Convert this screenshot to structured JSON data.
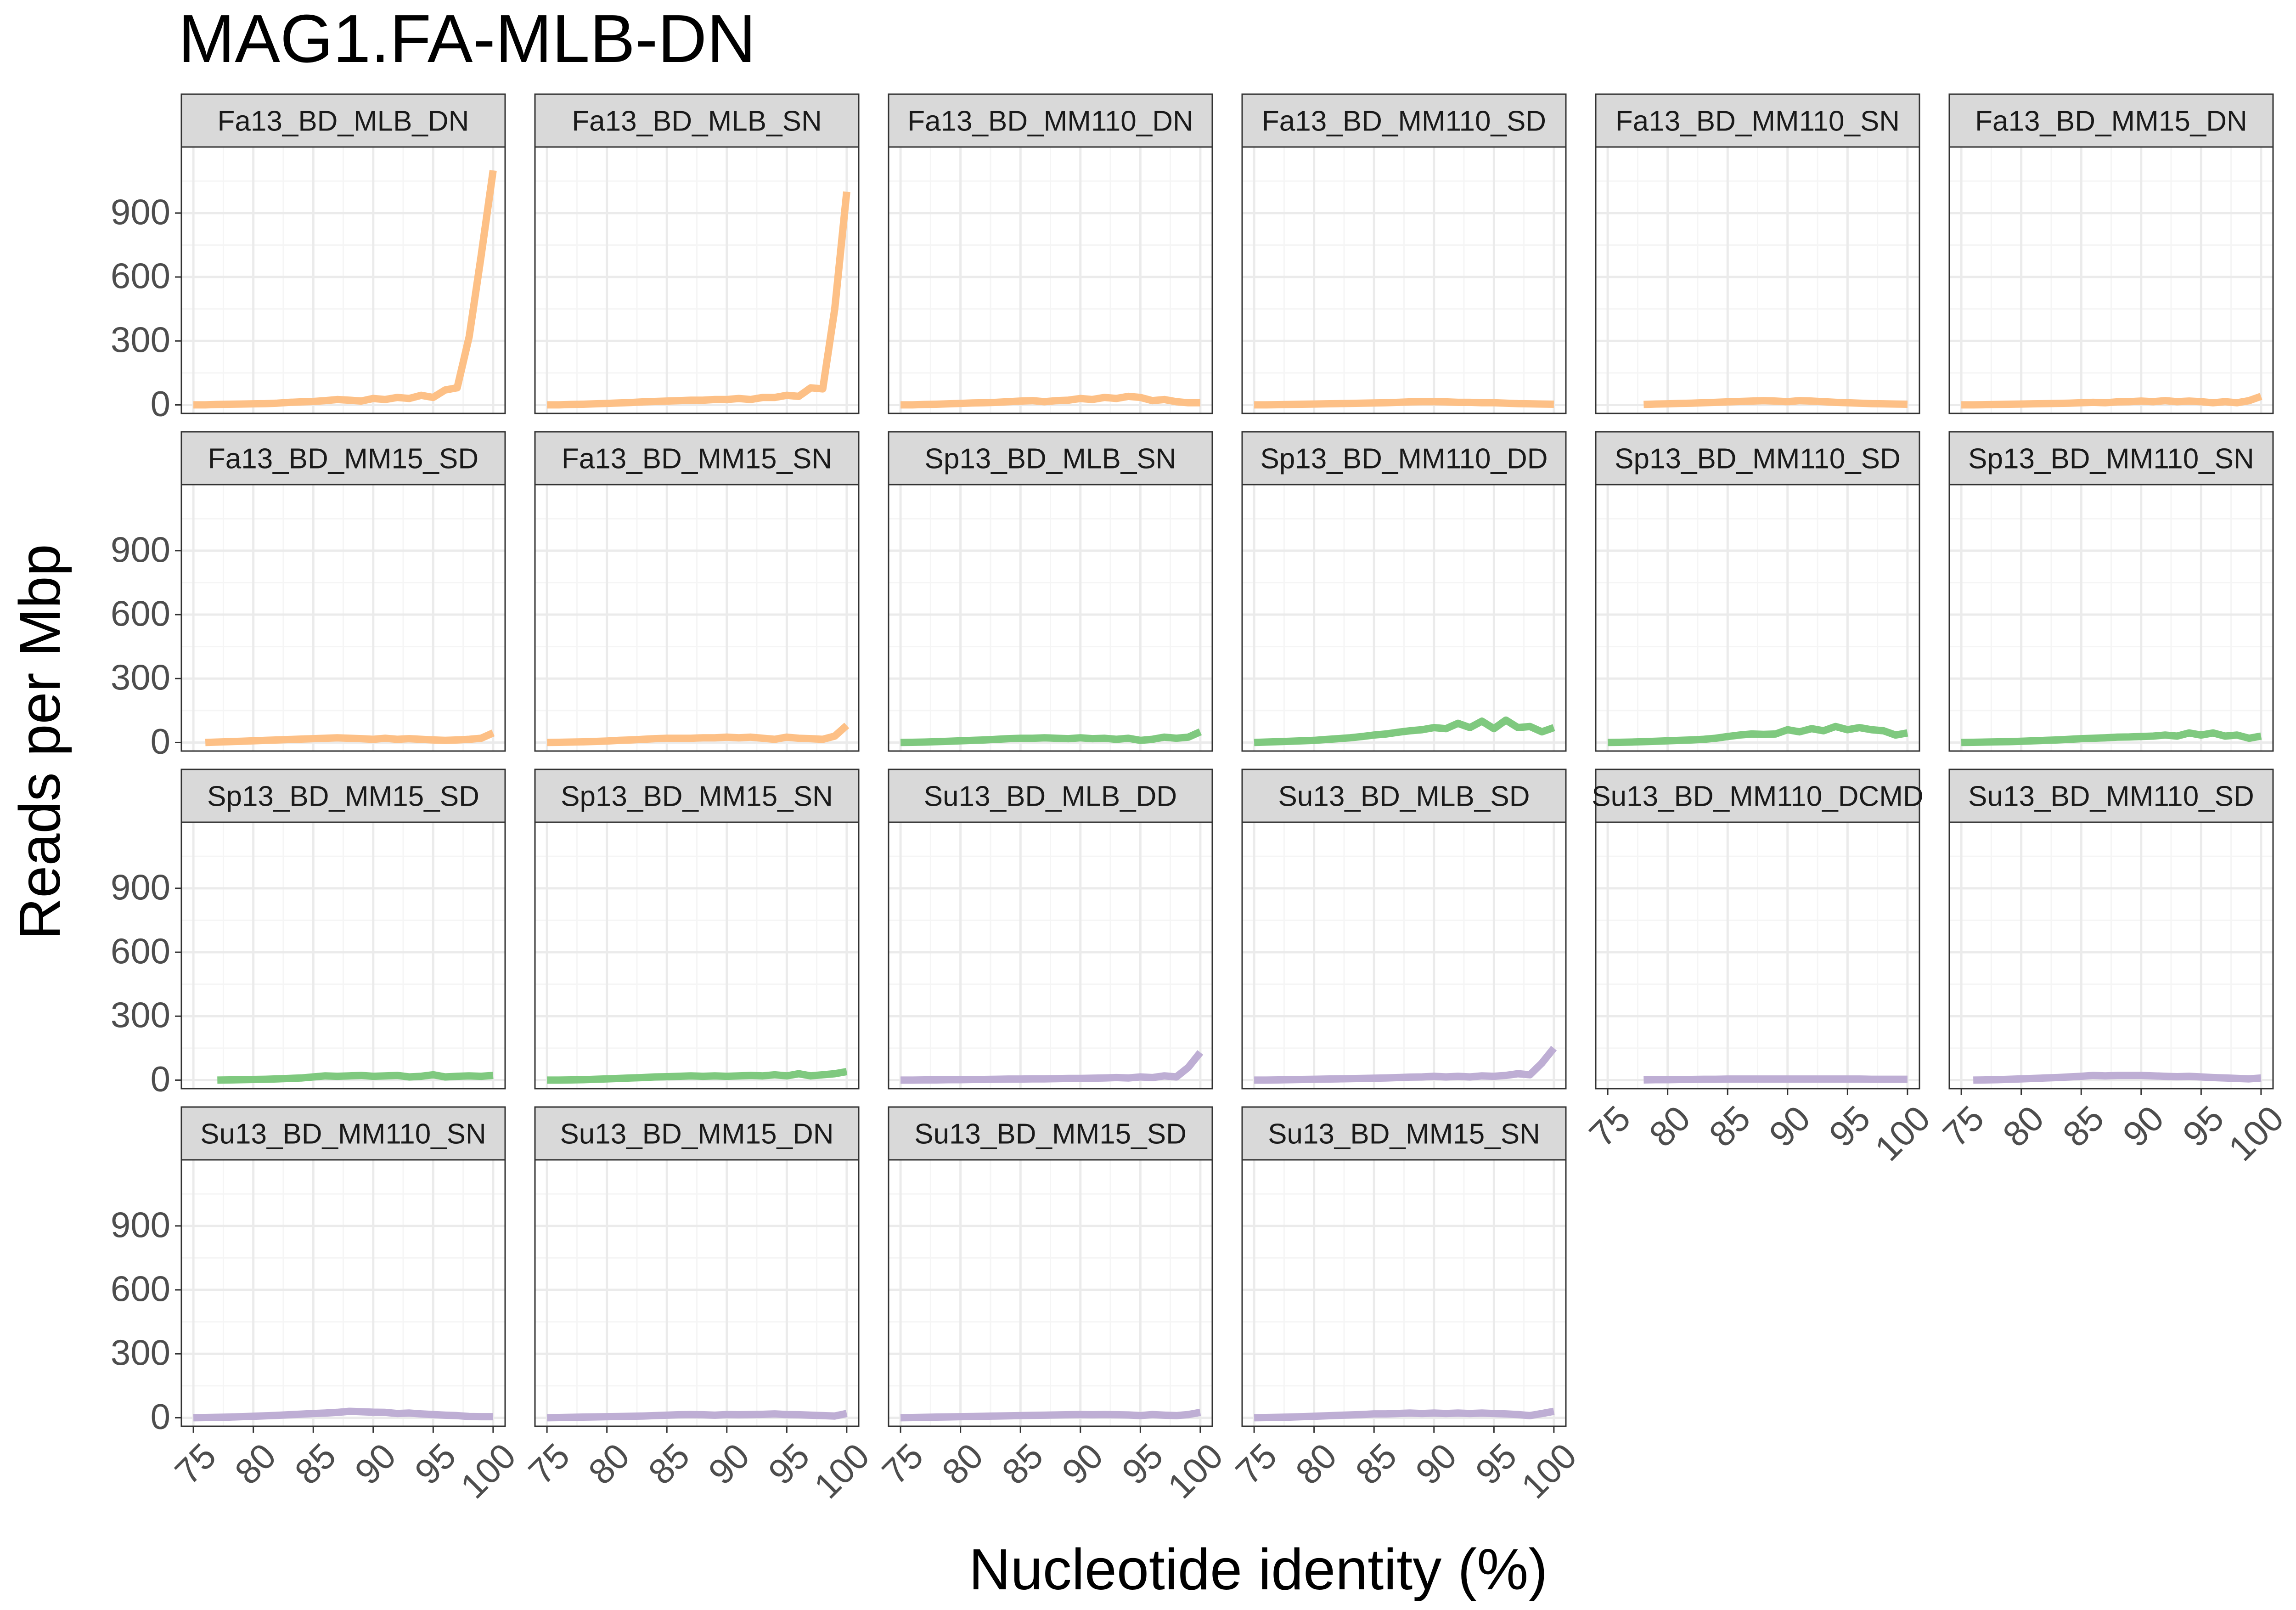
{
  "chart_data": {
    "type": "line",
    "title": "MAG1.FA-MLB-DN",
    "xlabel": "Nucleotide identity (%)",
    "ylabel": "Reads per Mbp",
    "xlim": [
      74,
      101
    ],
    "ylim": [
      -40,
      1210
    ],
    "x_ticks": [
      75,
      80,
      85,
      90,
      95,
      100
    ],
    "x_tick_labels": [
      "75",
      "80",
      "85",
      "90",
      "95",
      "100"
    ],
    "y_ticks": [
      0,
      300,
      600,
      900
    ],
    "y_tick_labels": [
      "0",
      "300",
      "600",
      "900"
    ],
    "grid": true,
    "legend": "none",
    "colors": {
      "Fa": "#FDC086",
      "Sp": "#7FC97F",
      "Su": "#BEAED4",
      "strip_fill": "#D9D9D9",
      "panel_border": "#333333",
      "grid_major": "#EBEBEB",
      "grid_minor": "#F5F5F5",
      "axis_text": "#4D4D4D"
    },
    "panels": [
      {
        "label": "Fa13_BD_MLB_DN",
        "color_key": "Fa",
        "x": [
          75,
          76,
          77,
          78,
          79,
          80,
          81,
          82,
          83,
          84,
          85,
          86,
          87,
          88,
          89,
          90,
          91,
          92,
          93,
          94,
          95,
          96,
          97,
          98,
          99,
          100
        ],
        "y": [
          0,
          0,
          2,
          3,
          4,
          5,
          6,
          8,
          12,
          14,
          16,
          20,
          25,
          22,
          18,
          30,
          25,
          35,
          30,
          45,
          35,
          70,
          80,
          320,
          700,
          1100
        ]
      },
      {
        "label": "Fa13_BD_MLB_SN",
        "color_key": "Fa",
        "x": [
          75,
          76,
          77,
          78,
          79,
          80,
          81,
          82,
          83,
          84,
          85,
          86,
          87,
          88,
          89,
          90,
          91,
          92,
          93,
          94,
          95,
          96,
          97,
          98,
          99,
          100
        ],
        "y": [
          0,
          0,
          2,
          3,
          5,
          7,
          9,
          11,
          14,
          16,
          18,
          20,
          22,
          22,
          25,
          25,
          30,
          25,
          35,
          35,
          45,
          40,
          80,
          75,
          450,
          1000
        ]
      },
      {
        "label": "Fa13_BD_MM110_DN",
        "color_key": "Fa",
        "x": [
          75,
          76,
          77,
          78,
          79,
          80,
          81,
          82,
          83,
          84,
          85,
          86,
          87,
          88,
          89,
          90,
          91,
          92,
          93,
          94,
          95,
          96,
          97,
          98,
          99,
          100
        ],
        "y": [
          0,
          0,
          2,
          3,
          5,
          7,
          9,
          10,
          12,
          15,
          18,
          20,
          15,
          20,
          22,
          30,
          25,
          35,
          30,
          40,
          35,
          20,
          25,
          15,
          10,
          10
        ]
      },
      {
        "label": "Fa13_BD_MM110_SD",
        "color_key": "Fa",
        "x": [
          75,
          76,
          77,
          78,
          79,
          80,
          81,
          82,
          83,
          84,
          85,
          86,
          87,
          88,
          89,
          90,
          91,
          92,
          93,
          94,
          95,
          96,
          97,
          98,
          99,
          100
        ],
        "y": [
          0,
          0,
          1,
          2,
          3,
          4,
          5,
          6,
          7,
          8,
          9,
          10,
          12,
          14,
          15,
          15,
          14,
          12,
          12,
          10,
          10,
          8,
          6,
          5,
          4,
          3
        ]
      },
      {
        "label": "Fa13_BD_MM110_SN",
        "color_key": "Fa",
        "x": [
          78,
          79,
          80,
          81,
          82,
          83,
          84,
          85,
          86,
          87,
          88,
          89,
          90,
          91,
          92,
          93,
          94,
          95,
          96,
          97,
          98,
          99,
          100
        ],
        "y": [
          2,
          4,
          5,
          7,
          8,
          10,
          12,
          14,
          16,
          18,
          20,
          18,
          15,
          20,
          18,
          15,
          12,
          10,
          8,
          6,
          5,
          4,
          3
        ]
      },
      {
        "label": "Fa13_BD_MM15_DN",
        "color_key": "Fa",
        "x": [
          75,
          76,
          77,
          78,
          79,
          80,
          81,
          82,
          83,
          84,
          85,
          86,
          87,
          88,
          89,
          90,
          91,
          92,
          93,
          94,
          95,
          96,
          97,
          98,
          99,
          100
        ],
        "y": [
          0,
          0,
          1,
          2,
          3,
          4,
          5,
          6,
          7,
          8,
          10,
          12,
          10,
          14,
          15,
          18,
          15,
          20,
          15,
          18,
          15,
          10,
          15,
          10,
          20,
          40
        ]
      },
      {
        "label": "Fa13_BD_MM15_SD",
        "color_key": "Fa",
        "x": [
          76,
          77,
          78,
          79,
          80,
          81,
          82,
          83,
          84,
          85,
          86,
          87,
          88,
          89,
          90,
          91,
          92,
          93,
          94,
          95,
          96,
          97,
          98,
          99,
          100
        ],
        "y": [
          0,
          2,
          4,
          6,
          8,
          10,
          12,
          14,
          16,
          18,
          20,
          22,
          20,
          18,
          15,
          20,
          15,
          18,
          15,
          12,
          10,
          12,
          15,
          20,
          45
        ]
      },
      {
        "label": "Fa13_BD_MM15_SN",
        "color_key": "Fa",
        "x": [
          75,
          76,
          77,
          78,
          79,
          80,
          81,
          82,
          83,
          84,
          85,
          86,
          87,
          88,
          89,
          90,
          91,
          92,
          93,
          94,
          95,
          96,
          97,
          98,
          99,
          100
        ],
        "y": [
          0,
          1,
          2,
          3,
          5,
          7,
          10,
          12,
          15,
          18,
          20,
          20,
          20,
          22,
          22,
          25,
          22,
          25,
          20,
          15,
          25,
          20,
          18,
          15,
          30,
          80
        ]
      },
      {
        "label": "Sp13_BD_MLB_SN",
        "color_key": "Sp",
        "x": [
          75,
          76,
          77,
          78,
          79,
          80,
          81,
          82,
          83,
          84,
          85,
          86,
          87,
          88,
          89,
          90,
          91,
          92,
          93,
          94,
          95,
          96,
          97,
          98,
          99,
          100
        ],
        "y": [
          0,
          1,
          2,
          4,
          6,
          8,
          10,
          12,
          15,
          18,
          20,
          20,
          22,
          20,
          18,
          22,
          18,
          20,
          15,
          20,
          10,
          15,
          25,
          20,
          25,
          50
        ]
      },
      {
        "label": "Sp13_BD_MM110_DD",
        "color_key": "Sp",
        "x": [
          75,
          76,
          77,
          78,
          79,
          80,
          81,
          82,
          83,
          84,
          85,
          86,
          87,
          88,
          89,
          90,
          91,
          92,
          93,
          94,
          95,
          96,
          97,
          98,
          99,
          100
        ],
        "y": [
          0,
          2,
          4,
          6,
          8,
          10,
          14,
          18,
          22,
          28,
          35,
          40,
          48,
          55,
          60,
          70,
          65,
          90,
          70,
          100,
          65,
          105,
          70,
          75,
          50,
          70
        ]
      },
      {
        "label": "Sp13_BD_MM110_SD",
        "color_key": "Sp",
        "x": [
          75,
          76,
          77,
          78,
          79,
          80,
          81,
          82,
          83,
          84,
          85,
          86,
          87,
          88,
          89,
          90,
          91,
          92,
          93,
          94,
          95,
          96,
          97,
          98,
          99,
          100
        ],
        "y": [
          0,
          1,
          2,
          4,
          6,
          8,
          10,
          12,
          15,
          20,
          28,
          35,
          40,
          38,
          40,
          60,
          50,
          65,
          55,
          75,
          60,
          70,
          60,
          55,
          35,
          45
        ]
      },
      {
        "label": "Sp13_BD_MM110_SN",
        "color_key": "Sp",
        "x": [
          75,
          76,
          77,
          78,
          79,
          80,
          81,
          82,
          83,
          84,
          85,
          86,
          87,
          88,
          89,
          90,
          91,
          92,
          93,
          94,
          95,
          96,
          97,
          98,
          99,
          100
        ],
        "y": [
          0,
          1,
          2,
          3,
          4,
          6,
          8,
          10,
          12,
          15,
          18,
          20,
          22,
          25,
          26,
          28,
          30,
          35,
          30,
          45,
          35,
          45,
          30,
          35,
          20,
          30
        ]
      },
      {
        "label": "Sp13_BD_MM15_SD",
        "color_key": "Sp",
        "x": [
          77,
          78,
          79,
          80,
          81,
          82,
          83,
          84,
          85,
          86,
          87,
          88,
          89,
          90,
          91,
          92,
          93,
          94,
          95,
          96,
          97,
          98,
          99,
          100
        ],
        "y": [
          0,
          1,
          2,
          3,
          4,
          6,
          8,
          10,
          15,
          20,
          18,
          20,
          22,
          18,
          20,
          22,
          15,
          18,
          25,
          15,
          18,
          20,
          18,
          22
        ]
      },
      {
        "label": "Sp13_BD_MM15_SN",
        "color_key": "Sp",
        "x": [
          75,
          76,
          77,
          78,
          79,
          80,
          81,
          82,
          83,
          84,
          85,
          86,
          87,
          88,
          89,
          90,
          91,
          92,
          93,
          94,
          95,
          96,
          97,
          98,
          99,
          100
        ],
        "y": [
          0,
          0,
          1,
          2,
          4,
          6,
          8,
          10,
          12,
          15,
          16,
          18,
          20,
          18,
          20,
          18,
          20,
          22,
          20,
          25,
          20,
          30,
          20,
          25,
          30,
          40
        ]
      },
      {
        "label": "Su13_BD_MLB_DD",
        "color_key": "Su",
        "x": [
          75,
          76,
          77,
          78,
          79,
          80,
          81,
          82,
          83,
          84,
          85,
          86,
          87,
          88,
          89,
          90,
          91,
          92,
          93,
          94,
          95,
          96,
          97,
          98,
          99,
          100
        ],
        "y": [
          0,
          0,
          1,
          1,
          2,
          2,
          3,
          3,
          4,
          5,
          5,
          6,
          6,
          7,
          8,
          8,
          9,
          10,
          12,
          10,
          15,
          12,
          20,
          15,
          60,
          130
        ]
      },
      {
        "label": "Su13_BD_MLB_SD",
        "color_key": "Su",
        "x": [
          75,
          76,
          77,
          78,
          79,
          80,
          81,
          82,
          83,
          84,
          85,
          86,
          87,
          88,
          89,
          90,
          91,
          92,
          93,
          94,
          95,
          96,
          97,
          98,
          99,
          100
        ],
        "y": [
          0,
          0,
          1,
          2,
          3,
          4,
          5,
          6,
          7,
          8,
          9,
          10,
          12,
          14,
          15,
          18,
          15,
          18,
          15,
          20,
          18,
          22,
          30,
          25,
          80,
          150
        ]
      },
      {
        "label": "Su13_BD_MM110_DCMD",
        "color_key": "Su",
        "x": [
          78,
          79,
          80,
          81,
          82,
          83,
          84,
          85,
          86,
          87,
          88,
          89,
          90,
          91,
          92,
          93,
          94,
          95,
          96,
          97,
          98,
          99,
          100
        ],
        "y": [
          1,
          2,
          2,
          3,
          3,
          4,
          4,
          5,
          5,
          5,
          5,
          5,
          5,
          5,
          5,
          5,
          5,
          5,
          5,
          4,
          4,
          4,
          4
        ]
      },
      {
        "label": "Su13_BD_MM110_SD",
        "color_key": "Su",
        "x": [
          76,
          77,
          78,
          79,
          80,
          81,
          82,
          83,
          84,
          85,
          86,
          87,
          88,
          89,
          90,
          91,
          92,
          93,
          94,
          95,
          96,
          97,
          98,
          99,
          100
        ],
        "y": [
          0,
          1,
          2,
          4,
          6,
          8,
          10,
          12,
          15,
          18,
          22,
          20,
          22,
          22,
          22,
          20,
          18,
          16,
          18,
          15,
          12,
          10,
          8,
          6,
          10
        ]
      },
      {
        "label": "Su13_BD_MM110_SN",
        "color_key": "Su",
        "x": [
          75,
          76,
          77,
          78,
          79,
          80,
          81,
          82,
          83,
          84,
          85,
          86,
          87,
          88,
          89,
          90,
          91,
          92,
          93,
          94,
          95,
          96,
          97,
          98,
          99,
          100
        ],
        "y": [
          0,
          1,
          2,
          3,
          5,
          7,
          9,
          11,
          14,
          17,
          20,
          22,
          25,
          30,
          28,
          26,
          25,
          20,
          22,
          18,
          15,
          12,
          10,
          6,
          5,
          5
        ]
      },
      {
        "label": "Su13_BD_MM15_DN",
        "color_key": "Su",
        "x": [
          75,
          76,
          77,
          78,
          79,
          80,
          81,
          82,
          83,
          84,
          85,
          86,
          87,
          88,
          89,
          90,
          91,
          92,
          93,
          94,
          95,
          96,
          97,
          98,
          99,
          100
        ],
        "y": [
          0,
          1,
          2,
          3,
          4,
          5,
          6,
          7,
          8,
          10,
          12,
          14,
          15,
          14,
          12,
          15,
          14,
          15,
          16,
          18,
          15,
          14,
          12,
          10,
          8,
          20
        ]
      },
      {
        "label": "Su13_BD_MM15_SD",
        "color_key": "Su",
        "x": [
          75,
          76,
          77,
          78,
          79,
          80,
          81,
          82,
          83,
          84,
          85,
          86,
          87,
          88,
          89,
          90,
          91,
          92,
          93,
          94,
          95,
          96,
          97,
          98,
          99,
          100
        ],
        "y": [
          0,
          1,
          2,
          3,
          4,
          5,
          6,
          7,
          8,
          9,
          10,
          11,
          12,
          13,
          14,
          15,
          14,
          15,
          14,
          13,
          10,
          15,
          12,
          10,
          15,
          25
        ]
      },
      {
        "label": "Su13_BD_MM15_SN",
        "color_key": "Su",
        "x": [
          75,
          76,
          77,
          78,
          79,
          80,
          81,
          82,
          83,
          84,
          85,
          86,
          87,
          88,
          89,
          90,
          91,
          92,
          93,
          94,
          95,
          96,
          97,
          98,
          99,
          100
        ],
        "y": [
          0,
          1,
          2,
          3,
          5,
          7,
          9,
          11,
          13,
          15,
          18,
          18,
          20,
          22,
          20,
          22,
          20,
          22,
          20,
          22,
          20,
          18,
          15,
          10,
          20,
          30
        ]
      }
    ]
  }
}
